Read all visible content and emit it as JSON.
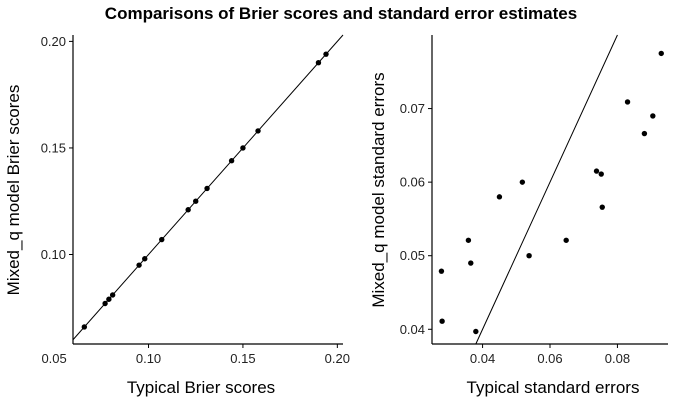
{
  "title": "Comparisons of Brier scores and standard error estimates",
  "chart_data": [
    {
      "type": "scatter",
      "xlabel": "Typical Brier scores",
      "ylabel": "Mixed_q model Brier scores",
      "xlim": [
        0.06,
        0.203
      ],
      "ylim": [
        0.058,
        0.203
      ],
      "xticks": [
        0.05,
        0.1,
        0.15,
        0.2
      ],
      "xtick_labels": [
        "0.05",
        "0.10",
        "0.15",
        "0.20"
      ],
      "yticks": [
        0.1,
        0.15,
        0.2
      ],
      "ytick_labels": [
        "0.10",
        "0.15",
        "0.20"
      ],
      "reference_line": "y = x",
      "grid": false,
      "points": [
        {
          "x": 0.066,
          "y": 0.066
        },
        {
          "x": 0.077,
          "y": 0.077
        },
        {
          "x": 0.079,
          "y": 0.079
        },
        {
          "x": 0.081,
          "y": 0.081
        },
        {
          "x": 0.095,
          "y": 0.095
        },
        {
          "x": 0.098,
          "y": 0.098
        },
        {
          "x": 0.107,
          "y": 0.107
        },
        {
          "x": 0.121,
          "y": 0.121
        },
        {
          "x": 0.125,
          "y": 0.125
        },
        {
          "x": 0.131,
          "y": 0.131
        },
        {
          "x": 0.144,
          "y": 0.144
        },
        {
          "x": 0.15,
          "y": 0.15
        },
        {
          "x": 0.158,
          "y": 0.158
        },
        {
          "x": 0.19,
          "y": 0.19
        },
        {
          "x": 0.194,
          "y": 0.194
        }
      ]
    },
    {
      "type": "scatter",
      "xlabel": "Typical standard errors",
      "ylabel": "Mixed_q model standard errors",
      "xlim": [
        0.025,
        0.095
      ],
      "ylim": [
        0.038,
        0.08
      ],
      "xticks": [
        0.04,
        0.06,
        0.08
      ],
      "xtick_labels": [
        "0.04",
        "0.06",
        "0.08"
      ],
      "yticks": [
        0.04,
        0.05,
        0.06,
        0.07
      ],
      "ytick_labels": [
        "0.04",
        "0.05",
        "0.06",
        "0.07"
      ],
      "reference_line": "y = x",
      "grid": false,
      "points": [
        {
          "x": 0.0278,
          "y": 0.0479
        },
        {
          "x": 0.028,
          "y": 0.0411
        },
        {
          "x": 0.0358,
          "y": 0.0521
        },
        {
          "x": 0.0365,
          "y": 0.049
        },
        {
          "x": 0.038,
          "y": 0.0397
        },
        {
          "x": 0.045,
          "y": 0.058
        },
        {
          "x": 0.0518,
          "y": 0.06
        },
        {
          "x": 0.0538,
          "y": 0.05
        },
        {
          "x": 0.0648,
          "y": 0.0521
        },
        {
          "x": 0.0738,
          "y": 0.0615
        },
        {
          "x": 0.0752,
          "y": 0.0611
        },
        {
          "x": 0.0755,
          "y": 0.0566
        },
        {
          "x": 0.083,
          "y": 0.0709
        },
        {
          "x": 0.088,
          "y": 0.0666
        },
        {
          "x": 0.0905,
          "y": 0.069
        },
        {
          "x": 0.093,
          "y": 0.0775
        }
      ]
    }
  ]
}
